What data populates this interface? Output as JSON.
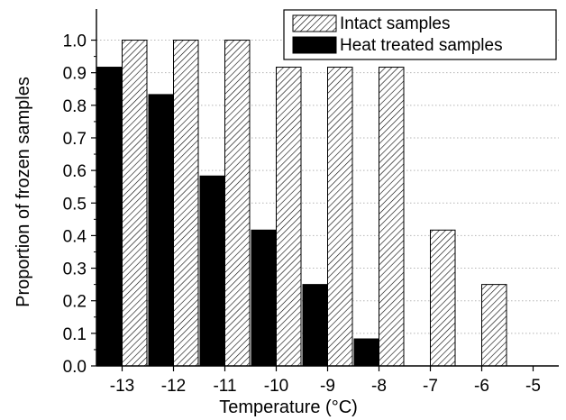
{
  "chart_data": {
    "type": "bar",
    "xlabel": "Temperature (°C)",
    "ylabel": "Proportion of frozen samples",
    "categories": [
      "-13",
      "-12",
      "-11",
      "-10",
      "-9",
      "-8",
      "-7",
      "-6",
      "-5"
    ],
    "ylim": [
      0,
      1.09
    ],
    "yticks": [
      "0.0",
      "0.1",
      "0.2",
      "0.3",
      "0.4",
      "0.5",
      "0.6",
      "0.7",
      "0.8",
      "0.9",
      "1.0"
    ],
    "grid": "horizontal dotted",
    "legend_position": "top-right",
    "series": [
      {
        "name": "Intact samples",
        "style": "hatched",
        "color": "#000000",
        "values": [
          1.0,
          1.0,
          1.0,
          0.917,
          0.917,
          0.917,
          0.417,
          0.25,
          0.0
        ]
      },
      {
        "name": "Heat treated samples",
        "style": "solid",
        "color": "#000000",
        "values": [
          0.917,
          0.833,
          0.583,
          0.417,
          0.25,
          0.083,
          0.0,
          0.0,
          0.0
        ]
      }
    ]
  }
}
